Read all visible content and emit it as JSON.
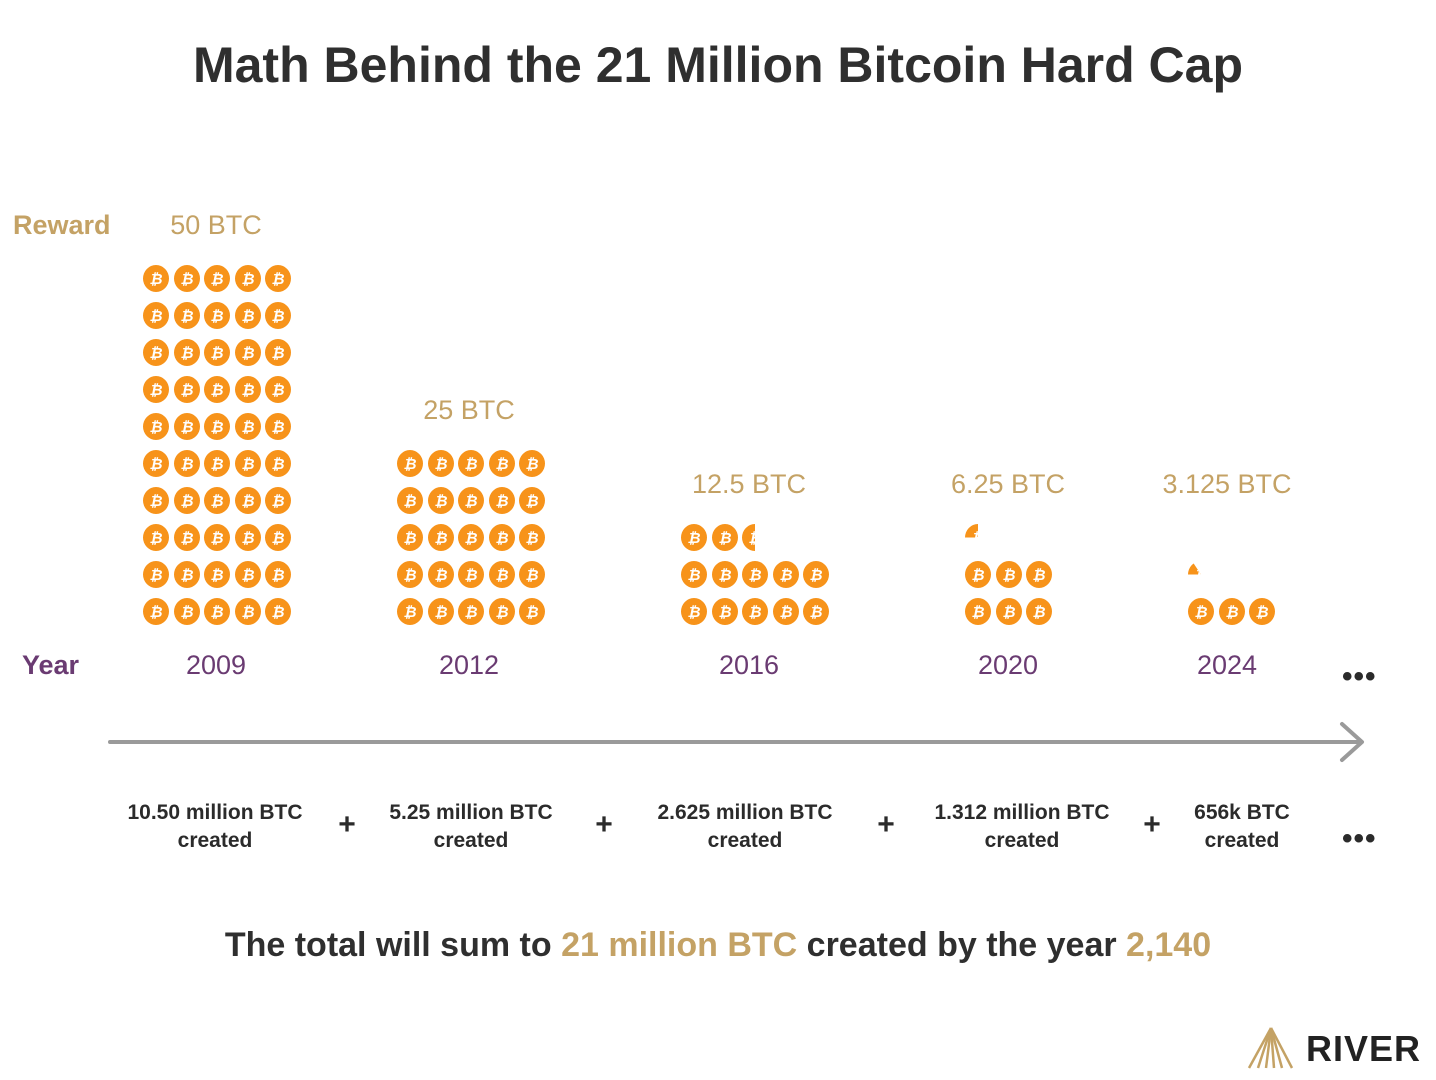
{
  "title": "Math Behind the 21 Million Bitcoin Hard Cap",
  "labels": {
    "reward": "Reward",
    "year": "Year"
  },
  "colors": {
    "gold": "#c4a265",
    "purple": "#6a3b72",
    "coin": "#f7931a",
    "axis": "#9a9a9a"
  },
  "chart_data": {
    "type": "pictograph",
    "unit": "1 coin icon = 1 BTC block reward",
    "categories": [
      "2009",
      "2012",
      "2016",
      "2020",
      "2024"
    ],
    "values": [
      50,
      25,
      12.5,
      6.25,
      3.125
    ],
    "reward_labels": [
      "50 BTC",
      "25 BTC",
      "12.5 BTC",
      "6.25 BTC",
      "3.125 BTC"
    ],
    "created_labels": [
      [
        "10.50 million BTC",
        "created"
      ],
      [
        "5.25 million BTC",
        "created"
      ],
      [
        "2.625 million BTC",
        "created"
      ],
      [
        "1.312 million BTC",
        "created"
      ],
      [
        "656k BTC",
        "created"
      ]
    ],
    "continuation": "•••",
    "operator": "+"
  },
  "summary": {
    "part1": "The total will sum to ",
    "highlight1": "21 million BTC",
    "part2": " created by the year ",
    "highlight2": "2,140"
  },
  "logo": {
    "text": "RIVER"
  }
}
